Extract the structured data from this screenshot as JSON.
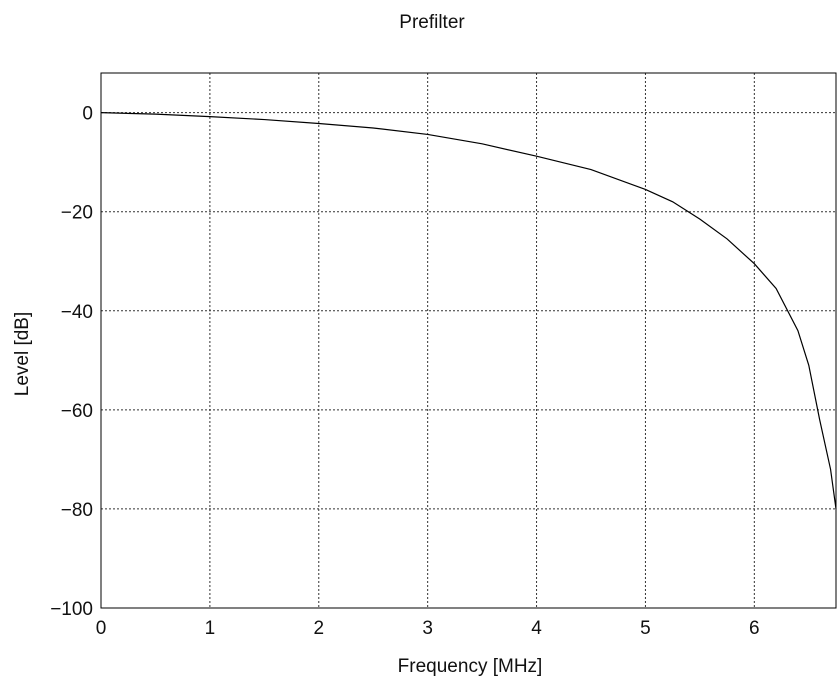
{
  "chart_data": {
    "type": "line",
    "title": "Prefilter",
    "xlabel": "Frequency [MHz]",
    "ylabel": "Level [dB]",
    "xlim": [
      0,
      6.75
    ],
    "ylim": [
      -100,
      8
    ],
    "xticks": [
      0,
      1,
      2,
      3,
      4,
      5,
      6
    ],
    "yticks": [
      0,
      -20,
      -40,
      -60,
      -80,
      -100
    ],
    "xtick_labels": [
      "0",
      "1",
      "2",
      "3",
      "4",
      "5",
      "6"
    ],
    "ytick_labels": [
      "0",
      "−20",
      "−40",
      "−60",
      "−80",
      "−100"
    ],
    "grid": true,
    "series": [
      {
        "x": [
          0,
          0.5,
          1.0,
          1.5,
          2.0,
          2.5,
          3.0,
          3.5,
          4.0,
          4.5,
          5.0,
          5.25,
          5.5,
          5.75,
          6.0,
          6.2,
          6.4,
          6.5,
          6.6,
          6.7,
          6.75
        ],
        "y": [
          0,
          -0.3,
          -0.8,
          -1.4,
          -2.2,
          -3.1,
          -4.4,
          -6.3,
          -8.8,
          -11.5,
          -15.5,
          -18.0,
          -21.5,
          -25.5,
          -30.5,
          -35.5,
          -44.0,
          -51.0,
          -62.0,
          -72.0,
          -80.0
        ]
      }
    ]
  }
}
